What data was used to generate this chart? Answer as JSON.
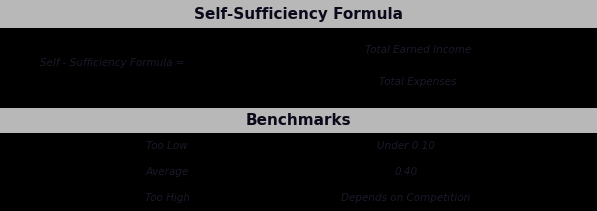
{
  "title1": "Self-Sufficiency Formula",
  "title2": "Benchmarks",
  "formula_label": "Self - Sufficiency Formula =",
  "numerator": "Total Earned Income",
  "denominator": "Total Expenses",
  "benchmarks": [
    {
      "label": "Too Low",
      "value": "Under 0.10"
    },
    {
      "label": "Average",
      "value": "0.40"
    },
    {
      "label": "Too High",
      "value": "Depends on Competition"
    }
  ],
  "bg_color": "#000000",
  "header_bg": "#b8b8b8",
  "text_color_title": "#0a0a1a",
  "text_color_body": "#1a1a2a",
  "title_fontsize": 11,
  "label_fontsize": 7.5,
  "fig_width": 5.97,
  "fig_height": 2.11,
  "dpi": 100
}
